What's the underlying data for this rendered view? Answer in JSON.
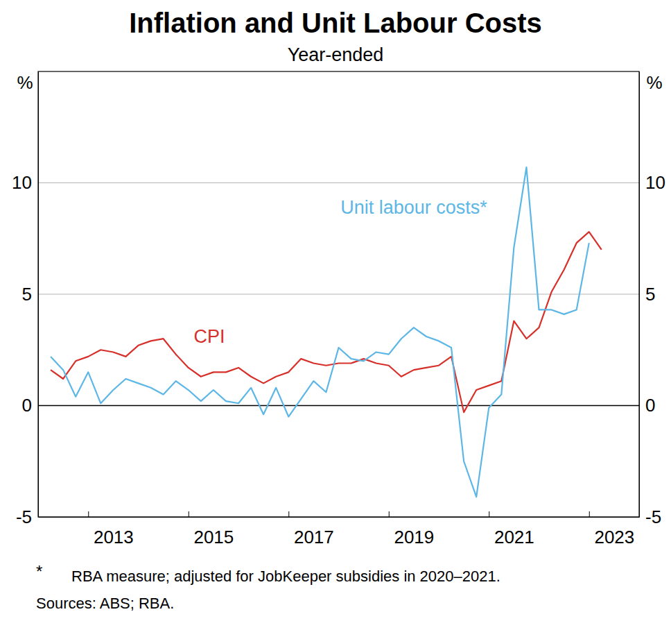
{
  "chart_data": {
    "type": "line",
    "title": "Inflation and Unit Labour Costs",
    "subtitle": "Year-ended",
    "y_label": "%",
    "notes": [
      "*",
      "RBA measure; adjusted for JobKeeper subsidies in 2020–2021.",
      "Sources: ABS; RBA."
    ],
    "x": [
      2012.25,
      2012.5,
      2012.75,
      2013.0,
      2013.25,
      2013.5,
      2013.75,
      2014.0,
      2014.25,
      2014.5,
      2014.75,
      2015.0,
      2015.25,
      2015.5,
      2015.75,
      2016.0,
      2016.25,
      2016.5,
      2016.75,
      2017.0,
      2017.25,
      2017.5,
      2017.75,
      2018.0,
      2018.25,
      2018.5,
      2018.75,
      2019.0,
      2019.25,
      2019.5,
      2019.75,
      2020.0,
      2020.25,
      2020.5,
      2020.75,
      2021.0,
      2021.25,
      2021.5,
      2021.75,
      2022.0,
      2022.25,
      2022.5,
      2022.75,
      2023.0,
      2023.25
    ],
    "series": [
      {
        "name": "CPI",
        "color": "#d7302a",
        "values": [
          1.6,
          1.2,
          2.0,
          2.2,
          2.5,
          2.4,
          2.2,
          2.7,
          2.9,
          3.0,
          2.3,
          1.7,
          1.3,
          1.5,
          1.5,
          1.7,
          1.3,
          1.0,
          1.3,
          1.5,
          2.1,
          1.9,
          1.8,
          1.9,
          1.9,
          2.1,
          1.9,
          1.8,
          1.3,
          1.6,
          1.7,
          1.8,
          2.2,
          -0.3,
          0.7,
          0.9,
          1.1,
          3.8,
          3.0,
          3.5,
          5.1,
          6.1,
          7.3,
          7.8,
          7.0
        ]
      },
      {
        "name": "Unit labour costs*",
        "color": "#5cb6e6",
        "values": [
          2.2,
          1.6,
          0.4,
          1.5,
          0.1,
          0.7,
          1.2,
          1.0,
          0.8,
          0.5,
          1.1,
          0.7,
          0.2,
          0.7,
          0.2,
          0.1,
          0.8,
          -0.4,
          0.8,
          -0.5,
          0.3,
          1.1,
          0.6,
          2.6,
          2.1,
          2.0,
          2.4,
          2.3,
          3.0,
          3.5,
          3.1,
          2.9,
          2.6,
          -2.5,
          -4.1,
          -0.1,
          0.5,
          7.1,
          10.7,
          4.3,
          4.3,
          4.1,
          4.3,
          7.3,
          null
        ]
      }
    ],
    "xlim": [
      2012,
      2024
    ],
    "xticks": [
      2013,
      2015,
      2017,
      2019,
      2021,
      2023
    ],
    "ylim": [
      -5,
      15
    ],
    "yticks": [
      -5,
      0,
      5,
      10
    ],
    "grid": true
  }
}
